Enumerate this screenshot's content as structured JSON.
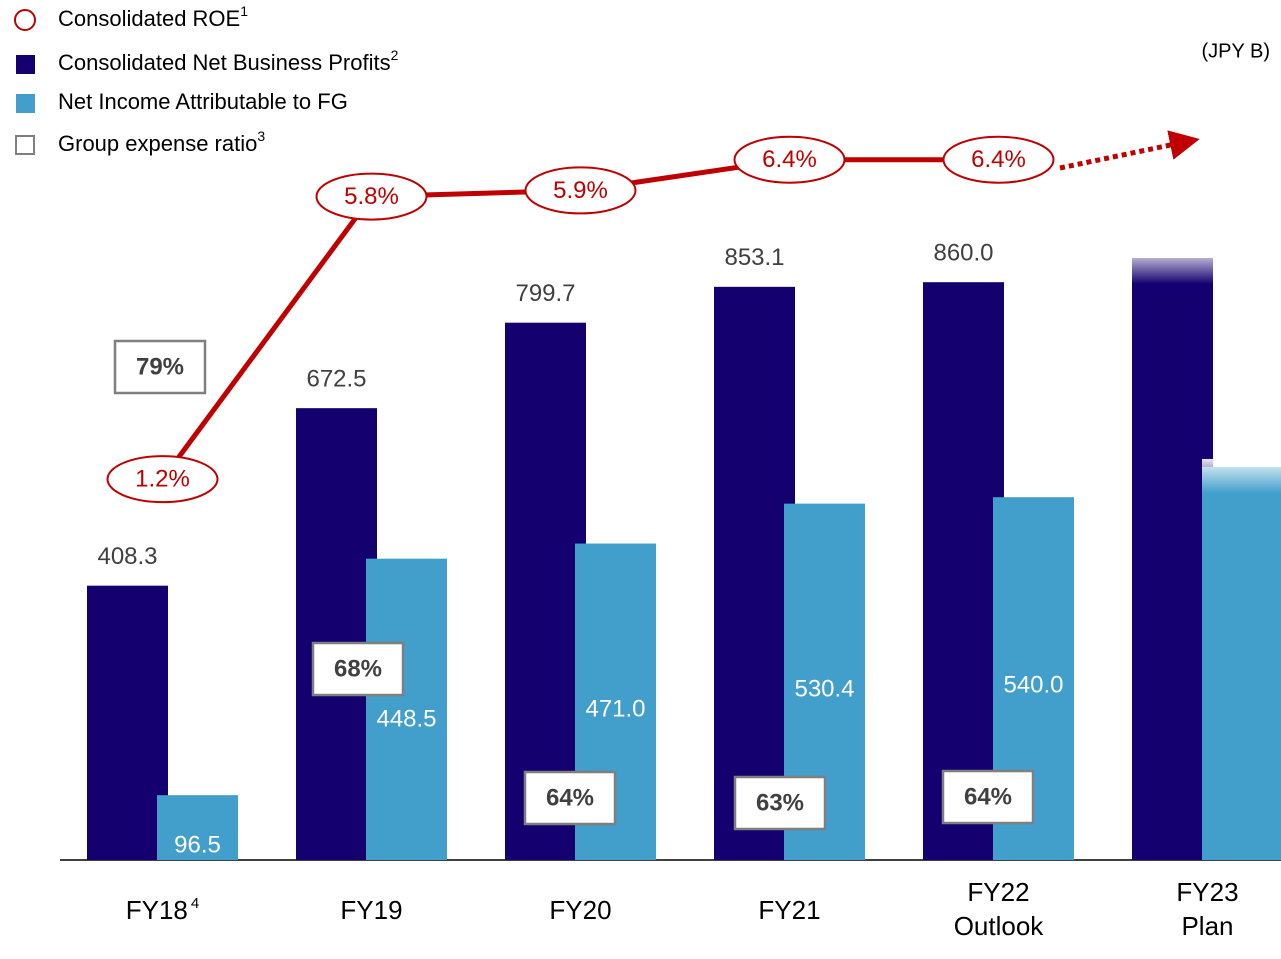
{
  "chart_data": {
    "type": "bar",
    "unit": "(JPY B)",
    "categories": [
      "FY18",
      "FY19",
      "FY20",
      "FY21",
      "FY22 Outlook",
      "FY23 Plan"
    ],
    "category_footnote": {
      "category": "FY18",
      "label": "4"
    },
    "ylim": [
      0,
      1280
    ],
    "y2lim": [
      -5,
      9
    ],
    "series": [
      {
        "name": "Consolidated ROE",
        "note": "1",
        "type": "line",
        "axis": "y2",
        "color": "#c00000",
        "values": [
          1.2,
          5.8,
          5.9,
          6.4,
          6.4,
          null
        ],
        "value_labels": [
          "1.2%",
          "5.8%",
          "5.9%",
          "6.4%",
          "6.4%",
          null
        ]
      },
      {
        "name": "Consolidated Net Business Profits",
        "note": "2",
        "type": "bar",
        "color": "#14006e",
        "values": [
          408.3,
          672.5,
          799.7,
          853.1,
          860.0,
          896
        ],
        "value_labels": [
          "408.3",
          "672.5",
          "799.7",
          "853.1",
          "860.0",
          null
        ]
      },
      {
        "name": "Net Income Attributable to FG",
        "type": "bar",
        "color": "#429fcb",
        "values": [
          96.5,
          448.5,
          471.0,
          530.4,
          540.0,
          585
        ],
        "value_labels": [
          "96.5",
          "448.5",
          "471.0",
          "530.4",
          "540.0",
          null
        ]
      },
      {
        "name": "Group expense ratio",
        "note": "3",
        "type": "box",
        "color": "#7f7f7f",
        "values": [
          79,
          68,
          64,
          63,
          64,
          null
        ],
        "value_labels": [
          "79%",
          "68%",
          "64%",
          "63%",
          "64%",
          null
        ]
      }
    ]
  }
}
